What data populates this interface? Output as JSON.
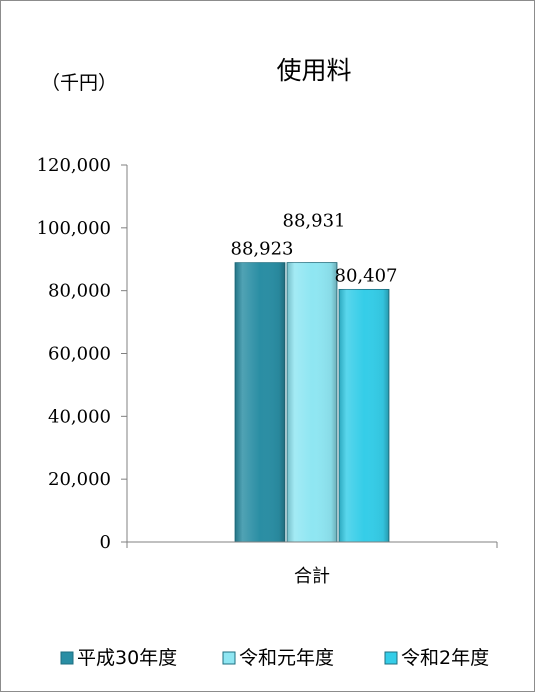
{
  "chart_data": {
    "type": "bar",
    "title": "使用料",
    "unit_label": "（千円）",
    "categories": [
      "合計"
    ],
    "series": [
      {
        "name": "平成30年度",
        "values": [
          88923
        ],
        "value_labels": [
          "88,923"
        ],
        "color": "#2a8ea4"
      },
      {
        "name": "令和元年度",
        "values": [
          88931
        ],
        "value_labels": [
          "88,931"
        ],
        "color": "#8fe6f2"
      },
      {
        "name": "令和2年度",
        "values": [
          80407
        ],
        "value_labels": [
          "80,407"
        ],
        "color": "#35cde8"
      }
    ],
    "ylim": [
      0,
      120000
    ],
    "yticks": [
      0,
      20000,
      40000,
      60000,
      80000,
      100000,
      120000
    ],
    "ytick_labels": [
      "0",
      "20,000",
      "40,000",
      "60,000",
      "80,000",
      "100,000",
      "120,000"
    ],
    "grid": false,
    "legend_position": "bottom"
  }
}
